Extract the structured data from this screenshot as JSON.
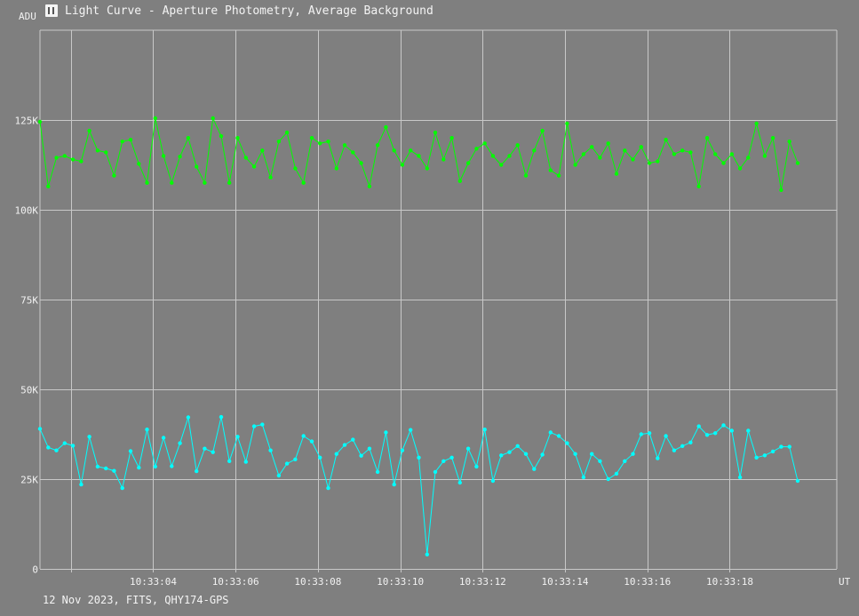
{
  "window": {
    "title": "Light Curve - Aperture Photometry, Average Background",
    "footer": "12 Nov 2023, FITS, QHY174-GPS"
  },
  "colors": {
    "background": "#7f7f7f",
    "grid": "#c8c8c8",
    "text": "#f2f2f2"
  },
  "chart_data": {
    "type": "line",
    "title": "Light Curve - Aperture Photometry, Average Background",
    "xlabel": "UT",
    "ylabel": "ADU",
    "ylim": [
      0,
      150000
    ],
    "xlim": [
      1.25,
      20.6
    ],
    "grid": true,
    "y_ticks": [
      {
        "value": 0,
        "label": "0"
      },
      {
        "value": 25000,
        "label": "25K"
      },
      {
        "value": 50000,
        "label": "50K"
      },
      {
        "value": 75000,
        "label": "75K"
      },
      {
        "value": 100000,
        "label": "100K"
      },
      {
        "value": 125000,
        "label": "125K"
      }
    ],
    "x_ticks": [
      {
        "value": 4,
        "label": "10:33:04"
      },
      {
        "value": 6,
        "label": "10:33:06"
      },
      {
        "value": 8,
        "label": "10:33:08"
      },
      {
        "value": 10,
        "label": "10:33:10"
      },
      {
        "value": 12,
        "label": "10:33:12"
      },
      {
        "value": 14,
        "label": "10:33:14"
      },
      {
        "value": 16,
        "label": "10:33:16"
      },
      {
        "value": 18,
        "label": "10:33:18"
      }
    ],
    "x_start": 1.25,
    "x_step": 0.2,
    "series": [
      {
        "color": "#00ff00",
        "values": [
          124500,
          106500,
          114500,
          115000,
          114000,
          113500,
          122000,
          116500,
          116000,
          109500,
          119000,
          119500,
          112800,
          107500,
          125500,
          115000,
          107500,
          114800,
          120000,
          112000,
          107500,
          125500,
          120500,
          107500,
          120000,
          114500,
          112000,
          116500,
          109000,
          119000,
          121500,
          111500,
          107500,
          120000,
          118500,
          119000,
          111500,
          118000,
          116000,
          113000,
          106500,
          118000,
          123000,
          116500,
          112500,
          116500,
          115000,
          111500,
          121500,
          114000,
          120000,
          108000,
          113000,
          117000,
          118500,
          115000,
          112500,
          115000,
          118000,
          109500,
          116500,
          122000,
          111000,
          109500,
          124000,
          112500,
          115500,
          117500,
          114500,
          118500,
          110000,
          116500,
          114000,
          117500,
          113000,
          113500,
          119500,
          115500,
          116500,
          116000,
          106500,
          120000,
          115500,
          113000,
          115500,
          111500,
          114500,
          124000,
          115000,
          120000,
          105500,
          119000,
          113000
        ]
      },
      {
        "color": "#00ffff",
        "values": [
          39000,
          33800,
          33000,
          35000,
          34300,
          23500,
          36800,
          28500,
          28000,
          27300,
          22500,
          32800,
          28200,
          38800,
          28500,
          36500,
          28600,
          35000,
          42200,
          27200,
          33500,
          32500,
          42300,
          30000,
          36800,
          29800,
          39700,
          40200,
          33000,
          26000,
          29300,
          30500,
          37000,
          35500,
          31000,
          22500,
          32000,
          34500,
          36000,
          31500,
          33500,
          27000,
          38000,
          23500,
          33000,
          38700,
          31000,
          4000,
          27000,
          30000,
          31000,
          24000,
          33500,
          28500,
          38800,
          24500,
          31600,
          32500,
          34200,
          32000,
          27800,
          31800,
          38000,
          37000,
          35000,
          32000,
          25500,
          32000,
          30000,
          25000,
          26500,
          30000,
          32000,
          37500,
          37800,
          30800,
          37000,
          33000,
          34200,
          35200,
          39700,
          37300,
          37800,
          40000,
          38500,
          25500,
          38500,
          31000,
          31600,
          32700,
          34000,
          34000,
          24500
        ]
      }
    ]
  }
}
